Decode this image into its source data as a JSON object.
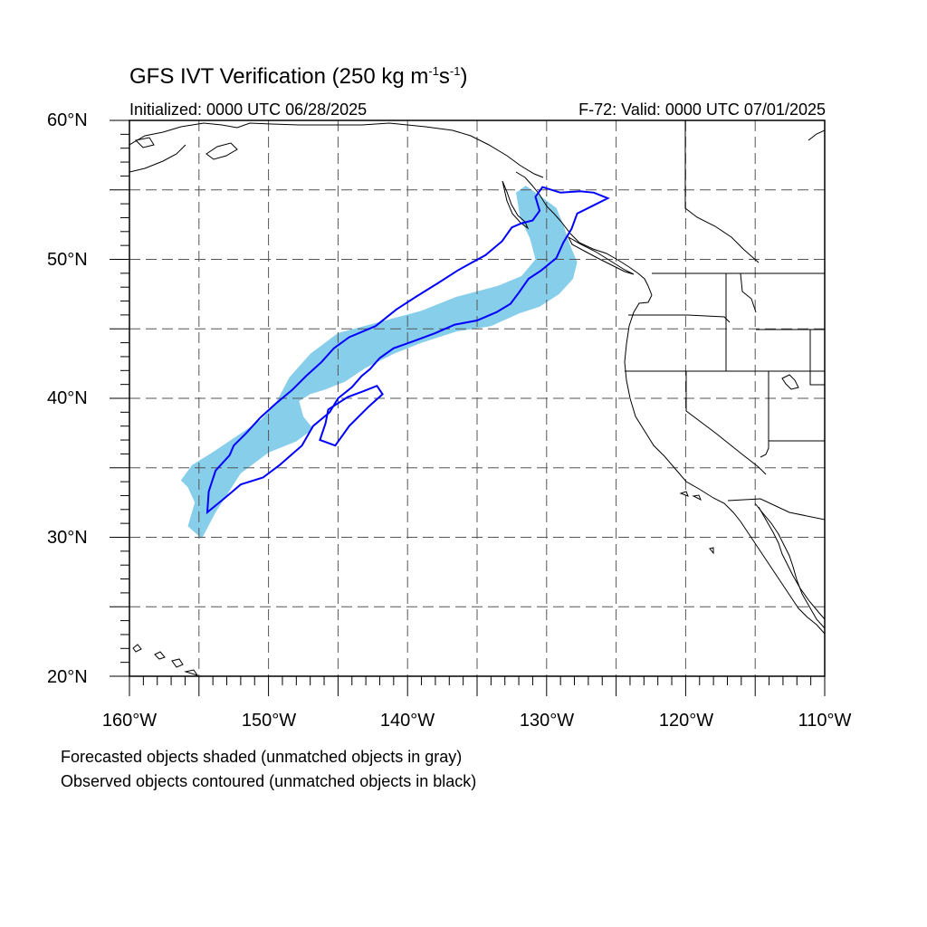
{
  "title": {
    "main": "GFS IVT Verification (250 kg m",
    "exp1": "-1",
    "mid": "s",
    "exp2": "-1",
    "end": ")"
  },
  "subtitle": {
    "left": "Initialized: 0000 UTC 06/28/2025",
    "right": "F-72: Valid: 0000 UTC 07/01/2025"
  },
  "axes": {
    "lat_labels": [
      "60°N",
      "50°N",
      "40°N",
      "30°N",
      "20°N"
    ],
    "lon_labels": [
      "160°W",
      "150°W",
      "140°W",
      "130°W",
      "120°W",
      "110°W"
    ]
  },
  "footnotes": {
    "line1": "Forecasted objects shaded (unmatched objects in gray)",
    "line2": "Observed objects contoured (unmatched objects in black)"
  },
  "colors": {
    "forecast_fill": "#87ceeb",
    "observed_contour": "#0000ff",
    "coastline": "#000000",
    "grid": "#555555"
  },
  "chart_data": {
    "type": "map",
    "lon_range": [
      -160,
      -110
    ],
    "lat_range": [
      20,
      60
    ],
    "grid_interval_deg": 5,
    "grid": "dashed",
    "threshold": "250 kg m-1 s-1",
    "forecast_object": [
      [
        -156.3,
        34.1
      ],
      [
        -155.5,
        35.2
      ],
      [
        -154.2,
        36.0
      ],
      [
        -153.0,
        36.8
      ],
      [
        -151.8,
        37.6
      ],
      [
        -150.5,
        38.5
      ],
      [
        -149.5,
        39.6
      ],
      [
        -148.5,
        41.5
      ],
      [
        -147.0,
        43.2
      ],
      [
        -145.0,
        44.7
      ],
      [
        -142.0,
        45.5
      ],
      [
        -139.0,
        46.3
      ],
      [
        -136.5,
        47.3
      ],
      [
        -133.5,
        48.1
      ],
      [
        -131.8,
        48.8
      ],
      [
        -130.8,
        50.0
      ],
      [
        -131.2,
        51.5
      ],
      [
        -131.9,
        53.0
      ],
      [
        -132.2,
        54.8
      ],
      [
        -131.5,
        55.3
      ],
      [
        -130.5,
        54.6
      ],
      [
        -129.3,
        53.7
      ],
      [
        -128.8,
        52.5
      ],
      [
        -128.3,
        51.0
      ],
      [
        -127.8,
        49.8
      ],
      [
        -128.1,
        48.6
      ],
      [
        -129.1,
        47.5
      ],
      [
        -130.5,
        46.6
      ],
      [
        -132.0,
        46.1
      ],
      [
        -134.0,
        45.2
      ],
      [
        -136.5,
        44.8
      ],
      [
        -139.0,
        44.0
      ],
      [
        -141.0,
        43.2
      ],
      [
        -143.0,
        42.2
      ],
      [
        -144.5,
        41.2
      ],
      [
        -146.0,
        40.6
      ],
      [
        -147.0,
        40.3
      ],
      [
        -147.8,
        39.8
      ],
      [
        -147.5,
        38.7
      ],
      [
        -146.8,
        37.8
      ],
      [
        -148.0,
        36.9
      ],
      [
        -150.0,
        36.1
      ],
      [
        -152.0,
        34.6
      ],
      [
        -153.8,
        31.8
      ],
      [
        -154.8,
        29.9
      ],
      [
        -155.8,
        30.8
      ],
      [
        -155.3,
        32.5
      ],
      [
        -155.8,
        33.6
      ]
    ],
    "observed_object": [
      [
        -154.4,
        31.8
      ],
      [
        -154.3,
        33.3
      ],
      [
        -153.8,
        34.8
      ],
      [
        -152.8,
        35.9
      ],
      [
        -152.5,
        36.6
      ],
      [
        -151.6,
        37.5
      ],
      [
        -150.6,
        38.6
      ],
      [
        -149.5,
        39.6
      ],
      [
        -148.3,
        40.6
      ],
      [
        -147.3,
        41.6
      ],
      [
        -146.2,
        42.6
      ],
      [
        -145.3,
        43.6
      ],
      [
        -144.2,
        44.4
      ],
      [
        -142.3,
        45.2
      ],
      [
        -140.8,
        46.4
      ],
      [
        -139.4,
        47.3
      ],
      [
        -137.8,
        48.3
      ],
      [
        -136.4,
        49.2
      ],
      [
        -135.5,
        49.7
      ],
      [
        -134.4,
        50.3
      ],
      [
        -133.2,
        51.3
      ],
      [
        -132.5,
        52.3
      ],
      [
        -131.8,
        52.6
      ],
      [
        -131.0,
        52.8
      ],
      [
        -130.5,
        53.5
      ],
      [
        -130.8,
        54.5
      ],
      [
        -130.3,
        55.2
      ],
      [
        -129.0,
        54.8
      ],
      [
        -127.6,
        54.9
      ],
      [
        -126.6,
        54.8
      ],
      [
        -125.6,
        54.4
      ],
      [
        -126.8,
        53.8
      ],
      [
        -127.8,
        53.3
      ],
      [
        -128.2,
        52.2
      ],
      [
        -128.8,
        51.2
      ],
      [
        -129.3,
        50.1
      ],
      [
        -130.4,
        49.2
      ],
      [
        -131.3,
        48.6
      ],
      [
        -132.0,
        47.6
      ],
      [
        -132.6,
        46.8
      ],
      [
        -133.6,
        46.2
      ],
      [
        -135.0,
        45.6
      ],
      [
        -136.6,
        45.3
      ],
      [
        -138.0,
        44.7
      ],
      [
        -139.6,
        44.1
      ],
      [
        -141.0,
        43.6
      ],
      [
        -142.0,
        42.9
      ],
      [
        -142.7,
        42.1
      ],
      [
        -143.3,
        41.6
      ],
      [
        -144.0,
        40.8
      ],
      [
        -145.0,
        40.0
      ],
      [
        -145.6,
        39.0
      ],
      [
        -146.8,
        38.0
      ],
      [
        -147.6,
        36.6
      ],
      [
        -149.2,
        35.2
      ],
      [
        -150.4,
        34.3
      ],
      [
        -152.0,
        33.8
      ],
      [
        -153.3,
        32.7
      ]
    ],
    "observed_object_2": [
      [
        -145.7,
        39.2
      ],
      [
        -145.9,
        38.2
      ],
      [
        -146.3,
        37.0
      ],
      [
        -145.2,
        36.6
      ],
      [
        -144.2,
        38.0
      ],
      [
        -142.8,
        39.4
      ],
      [
        -141.8,
        40.3
      ],
      [
        -142.2,
        40.9
      ],
      [
        -143.2,
        40.5
      ],
      [
        -144.3,
        40.1
      ]
    ]
  }
}
